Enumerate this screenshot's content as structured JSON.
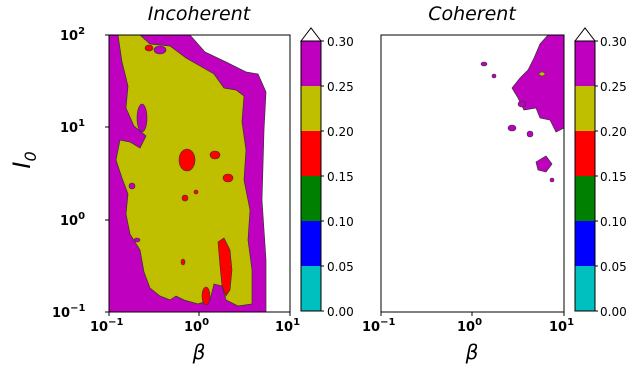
{
  "chart_data": [
    {
      "type": "contour",
      "title": "Incoherent",
      "xlabel": "β",
      "ylabel": "I",
      "ylabel_sub": "0",
      "xscale": "log",
      "yscale": "log",
      "xlim": [
        0.1,
        10
      ],
      "ylim": [
        0.1,
        100
      ],
      "x_ticks": [
        {
          "base": "10",
          "exp": "−1"
        },
        {
          "base": "10",
          "exp": "0"
        },
        {
          "base": "10",
          "exp": "1"
        }
      ],
      "y_ticks": [
        {
          "base": "10",
          "exp": "−1"
        },
        {
          "base": "10",
          "exp": "0"
        },
        {
          "base": "10",
          "exp": "1"
        },
        {
          "base": "10",
          "exp": "2"
        }
      ],
      "regions": [
        {
          "level": "0.25-0.30",
          "color": "#bf00bf",
          "description": "broad outer band"
        },
        {
          "level": "0.20-0.25",
          "color": "#bfbf00",
          "description": "central band, β≈0.15-3, I0≈0.15-80"
        },
        {
          "level": "0.15-0.20",
          "color": "#ff0000",
          "description": "small islands near β≈0.6-2"
        }
      ]
    },
    {
      "type": "contour",
      "title": "Coherent",
      "xlabel": "β",
      "xscale": "log",
      "yscale": "log",
      "xlim": [
        0.1,
        10
      ],
      "ylim": [
        0.1,
        100
      ],
      "x_ticks": [
        {
          "base": "10",
          "exp": "−1"
        },
        {
          "base": "10",
          "exp": "0"
        },
        {
          "base": "10",
          "exp": "1"
        }
      ],
      "regions": [
        {
          "level": "0.25-0.30",
          "color": "#bf00bf",
          "description": "patches at β≈2-10, I0≈2-80"
        }
      ]
    }
  ],
  "colorbar": {
    "levels": [
      "0.00",
      "0.05",
      "0.10",
      "0.15",
      "0.20",
      "0.25",
      "0.30"
    ],
    "colors": [
      "#00bfbf",
      "#0000ff",
      "#008000",
      "#ff0000",
      "#bfbf00",
      "#bf00bf"
    ],
    "extend": "max"
  }
}
